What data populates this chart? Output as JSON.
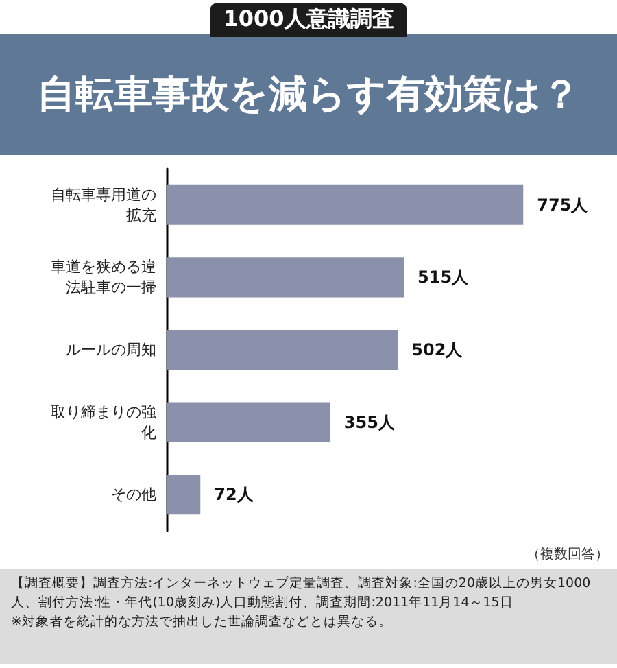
{
  "chart_data": {
    "type": "bar",
    "orientation": "horizontal",
    "subtitle": "1000人意識調査",
    "title": "自転車事故を減らす有効策は？",
    "categories": [
      "自転車専用道の拡充",
      "車道を狭める違法駐車の一掃",
      "ルールの周知",
      "取り締まりの強化",
      "その他"
    ],
    "values": [
      775,
      515,
      502,
      355,
      72
    ],
    "value_labels": [
      "775人",
      "515人",
      "502人",
      "355人",
      "72人"
    ],
    "color": "#8b90ab",
    "annotations": [
      "（複数回答）",
      "【調査概要】調査方法:インターネットウェブ定量調査、調査対象:全国の20歳以上の男女1000人、割付方法:性・年代(10歳刻み)人口動態割付、調査期間:2011年11月14～15日",
      "※対象者を統計的な方法で抽出した世論調査などとは異なる。"
    ]
  }
}
